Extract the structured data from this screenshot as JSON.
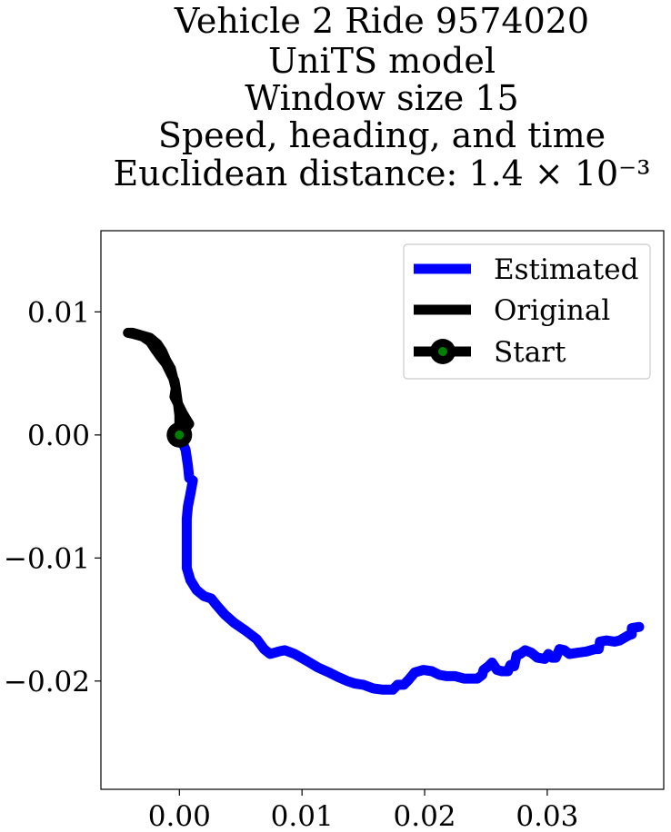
{
  "chart_data": {
    "type": "line",
    "title_lines": [
      "Vehicle 2 Ride 9574020",
      "UniTS model",
      "Window size 15",
      "Speed, heading, and time",
      "Euclidean distance: 1.4 × 10⁻³"
    ],
    "title_superscript": "−3",
    "xlabel": "",
    "ylabel": "",
    "xlim": [
      -0.0064,
      0.0395
    ],
    "ylim": [
      -0.0288,
      0.0166
    ],
    "x_ticks": [
      0.0,
      0.01,
      0.02,
      0.03
    ],
    "x_tick_labels": [
      "0.00",
      "0.01",
      "0.02",
      "0.03"
    ],
    "y_ticks": [
      0.01,
      0.0,
      -0.01,
      -0.02
    ],
    "y_tick_labels": [
      "0.01",
      "0.00",
      "−0.01",
      "−0.02"
    ],
    "grid": false,
    "legend_position": "top-right",
    "legend": [
      "Estimated",
      "Original",
      "Start"
    ],
    "series": [
      {
        "name": "Estimated",
        "color": "#0000ff",
        "points": [
          [
            0.0,
            0.0
          ],
          [
            0.0005,
            -0.0012
          ],
          [
            0.0007,
            -0.0025
          ],
          [
            0.0008,
            -0.0035
          ],
          [
            0.0011,
            -0.0037
          ],
          [
            0.0009,
            -0.0048
          ],
          [
            0.0007,
            -0.0058
          ],
          [
            0.0006,
            -0.0068
          ],
          [
            0.0006,
            -0.0078
          ],
          [
            0.0006,
            -0.0088
          ],
          [
            0.0006,
            -0.0098
          ],
          [
            0.0006,
            -0.0108
          ],
          [
            0.0009,
            -0.0118
          ],
          [
            0.0014,
            -0.0126
          ],
          [
            0.002,
            -0.0131
          ],
          [
            0.0026,
            -0.0133
          ],
          [
            0.003,
            -0.0138
          ],
          [
            0.0037,
            -0.0146
          ],
          [
            0.0045,
            -0.0153
          ],
          [
            0.0054,
            -0.0159
          ],
          [
            0.0063,
            -0.0166
          ],
          [
            0.0069,
            -0.0174
          ],
          [
            0.0074,
            -0.0178
          ],
          [
            0.0081,
            -0.0176
          ],
          [
            0.0086,
            -0.0175
          ],
          [
            0.0094,
            -0.0178
          ],
          [
            0.0103,
            -0.0183
          ],
          [
            0.0113,
            -0.0189
          ],
          [
            0.0122,
            -0.0193
          ],
          [
            0.013,
            -0.0197
          ],
          [
            0.0137,
            -0.02
          ],
          [
            0.0143,
            -0.0202
          ],
          [
            0.015,
            -0.0203
          ],
          [
            0.0158,
            -0.0206
          ],
          [
            0.0166,
            -0.0207
          ],
          [
            0.0174,
            -0.0207
          ],
          [
            0.0178,
            -0.0203
          ],
          [
            0.0183,
            -0.0203
          ],
          [
            0.0187,
            -0.0199
          ],
          [
            0.0192,
            -0.0193
          ],
          [
            0.0199,
            -0.0191
          ],
          [
            0.0206,
            -0.0192
          ],
          [
            0.0212,
            -0.0195
          ],
          [
            0.0218,
            -0.0196
          ],
          [
            0.0225,
            -0.0196
          ],
          [
            0.0232,
            -0.0198
          ],
          [
            0.0238,
            -0.0198
          ],
          [
            0.0243,
            -0.0198
          ],
          [
            0.0247,
            -0.0195
          ],
          [
            0.0248,
            -0.0191
          ],
          [
            0.0252,
            -0.0188
          ],
          [
            0.0255,
            -0.0185
          ],
          [
            0.0259,
            -0.0191
          ],
          [
            0.0263,
            -0.0192
          ],
          [
            0.0268,
            -0.0192
          ],
          [
            0.027,
            -0.0187
          ],
          [
            0.0273,
            -0.0188
          ],
          [
            0.0275,
            -0.0179
          ],
          [
            0.0278,
            -0.0178
          ],
          [
            0.0282,
            -0.0175
          ],
          [
            0.0287,
            -0.0177
          ],
          [
            0.0292,
            -0.0181
          ],
          [
            0.0298,
            -0.0182
          ],
          [
            0.0301,
            -0.0178
          ],
          [
            0.0304,
            -0.0181
          ],
          [
            0.0307,
            -0.0181
          ],
          [
            0.031,
            -0.0174
          ],
          [
            0.0314,
            -0.0175
          ],
          [
            0.0318,
            -0.0178
          ],
          [
            0.0325,
            -0.0177
          ],
          [
            0.0332,
            -0.0176
          ],
          [
            0.0339,
            -0.0174
          ],
          [
            0.0342,
            -0.0174
          ],
          [
            0.0343,
            -0.0168
          ],
          [
            0.0348,
            -0.0167
          ],
          [
            0.0355,
            -0.0168
          ],
          [
            0.0359,
            -0.0167
          ],
          [
            0.0366,
            -0.0163
          ],
          [
            0.0369,
            -0.0162
          ],
          [
            0.0369,
            -0.0157
          ],
          [
            0.0375,
            -0.0156
          ]
        ]
      },
      {
        "name": "Original",
        "color": "#000000",
        "points": [
          [
            0.0,
            0.0
          ],
          [
            0.0008,
            0.0009
          ],
          [
            0.0003,
            0.0017
          ],
          [
            -0.0001,
            0.0025
          ],
          [
            -0.0004,
            0.0031
          ],
          [
            -0.0003,
            0.0038
          ],
          [
            -0.0004,
            0.0044
          ],
          [
            -0.0008,
            0.0052
          ],
          [
            -0.0011,
            0.0058
          ],
          [
            -0.0015,
            0.0063
          ],
          [
            -0.002,
            0.007
          ],
          [
            -0.0024,
            0.0076
          ],
          [
            -0.003,
            0.008
          ],
          [
            -0.0037,
            0.0082
          ],
          [
            -0.0042,
            0.0083
          ],
          [
            -0.0038,
            0.0083
          ],
          [
            -0.0031,
            0.0081
          ],
          [
            -0.0024,
            0.0079
          ],
          [
            -0.0018,
            0.0074
          ],
          [
            -0.0014,
            0.0068
          ],
          [
            -0.0011,
            0.0061
          ],
          [
            -0.0007,
            0.0054
          ],
          [
            -0.0005,
            0.0046
          ],
          [
            -0.0003,
            0.0038
          ],
          [
            -0.0002,
            0.0031
          ],
          [
            -0.0001,
            0.0024
          ],
          [
            0.0,
            0.0016
          ],
          [
            0.0,
            0.0008
          ],
          [
            0.0,
            0.0
          ]
        ]
      }
    ],
    "start_point": {
      "name": "Start",
      "x": 0.0,
      "y": 0.0,
      "fill": "#008000",
      "edge": "#000000"
    }
  }
}
